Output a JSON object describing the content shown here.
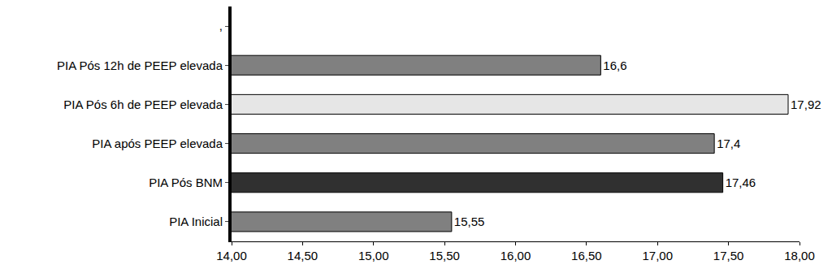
{
  "chart_data": {
    "type": "bar",
    "orientation": "horizontal",
    "categories": [
      "PIA Inicial",
      "PIA Pós BNM",
      "PIA após PEEP elevada",
      "PIA Pós 6h de PEEP elevada",
      "PIA Pós 12h de PEEP elevada",
      ","
    ],
    "values": [
      15.55,
      17.46,
      17.4,
      17.92,
      16.6,
      null
    ],
    "value_labels": [
      "15,55",
      "17,46",
      "17,4",
      "17,92",
      "16,6",
      null
    ],
    "colors": [
      "#808080",
      "#303030",
      "#808080",
      "#e6e6e6",
      "#808080",
      "#808080"
    ],
    "data_labels": true,
    "grid": false,
    "xlim": [
      14,
      18
    ],
    "xticks": [
      {
        "value": 14,
        "label": "14,00"
      },
      {
        "value": 14.5,
        "label": "14,50"
      },
      {
        "value": 15,
        "label": "15,00"
      },
      {
        "value": 15.5,
        "label": "15,50"
      },
      {
        "value": 16,
        "label": "16,00"
      },
      {
        "value": 16.5,
        "label": "16,50"
      },
      {
        "value": 17,
        "label": "17,00"
      },
      {
        "value": 17.5,
        "label": "17,50"
      },
      {
        "value": 18,
        "label": "18,00"
      }
    ]
  }
}
